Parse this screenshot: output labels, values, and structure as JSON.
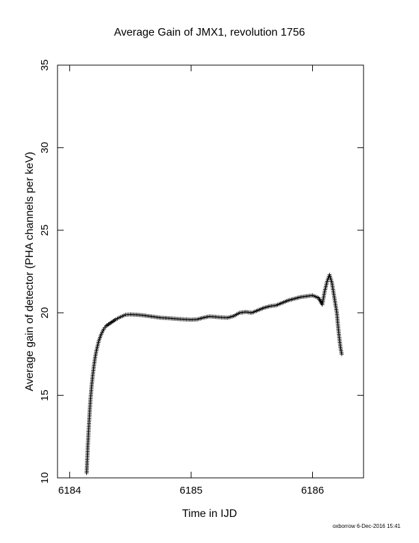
{
  "chart_data": {
    "type": "scatter",
    "title": "Average Gain of JMX1, revolution 1756",
    "xlabel": "Time in IJD",
    "ylabel": "Average gain of detector (PHA channels per keV)",
    "xlim": [
      6183.9,
      6186.42
    ],
    "ylim": [
      10,
      35
    ],
    "xticks": [
      6184,
      6185,
      6186
    ],
    "xtick_labels": [
      "6184",
      "6185",
      "6186"
    ],
    "yticks": [
      10,
      15,
      20,
      25,
      30,
      35
    ],
    "ytick_labels": [
      "10",
      "15",
      "20",
      "25",
      "30",
      "35"
    ],
    "grid": false,
    "marker": "plus",
    "series": [
      {
        "x": [
          6184.14,
          6184.15,
          6184.16,
          6184.17,
          6184.18,
          6184.19,
          6184.2,
          6184.21,
          6184.22,
          6184.23,
          6184.24,
          6184.25,
          6184.26,
          6184.28,
          6184.3,
          6184.32,
          6184.35,
          6184.38,
          6184.42,
          6184.46,
          6184.5,
          6184.55,
          6184.6,
          6184.65,
          6184.7,
          6184.75,
          6184.8,
          6184.85,
          6184.9,
          6184.95,
          6185.0,
          6185.05,
          6185.1,
          6185.15,
          6185.2,
          6185.25,
          6185.3,
          6185.35,
          6185.4,
          6185.45,
          6185.5,
          6185.55,
          6185.6,
          6185.65,
          6185.7,
          6185.75,
          6185.8,
          6185.85,
          6185.9,
          6185.95,
          6186.0,
          6186.05,
          6186.08,
          6186.1,
          6186.12,
          6186.14,
          6186.16,
          6186.18,
          6186.2,
          6186.21,
          6186.22,
          6186.23,
          6186.24
        ],
        "y": [
          10.3,
          12.0,
          13.4,
          14.6,
          15.5,
          16.2,
          16.8,
          17.3,
          17.7,
          18.0,
          18.3,
          18.5,
          18.7,
          19.0,
          19.2,
          19.3,
          19.45,
          19.6,
          19.75,
          19.88,
          19.9,
          19.88,
          19.85,
          19.8,
          19.75,
          19.7,
          19.68,
          19.65,
          19.62,
          19.6,
          19.58,
          19.6,
          19.7,
          19.78,
          19.75,
          19.72,
          19.7,
          19.8,
          20.0,
          20.05,
          20.0,
          20.15,
          20.3,
          20.4,
          20.45,
          20.6,
          20.75,
          20.85,
          20.95,
          21.0,
          21.05,
          20.9,
          20.5,
          21.3,
          21.9,
          22.3,
          21.8,
          20.9,
          20.0,
          19.2,
          18.5,
          17.9,
          17.5
        ]
      }
    ]
  },
  "footer": "oxborrow  6-Dec-2016 15:41"
}
